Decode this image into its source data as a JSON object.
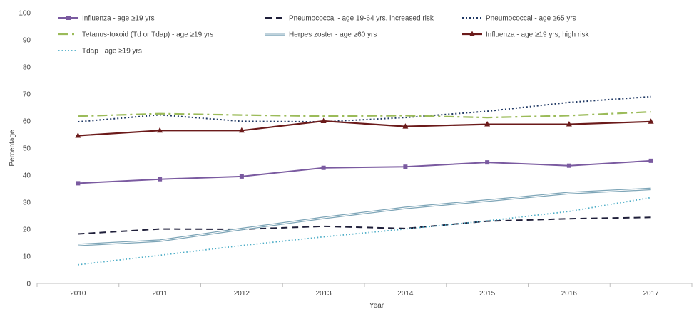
{
  "chart_data": {
    "type": "line",
    "title": "",
    "xlabel": "Year",
    "ylabel": "Percentage",
    "categories": [
      "2010",
      "2011",
      "2012",
      "2013",
      "2014",
      "2015",
      "2016",
      "2017"
    ],
    "ylim": [
      0,
      100
    ],
    "yticks": [
      0,
      10,
      20,
      30,
      40,
      50,
      60,
      70,
      80,
      90,
      100
    ],
    "grid": false,
    "legend_position": "top",
    "series": [
      {
        "name": "Influenza - age ≥19 yrs",
        "color": "#7a5aa0",
        "style": "solid-square-markers",
        "values": [
          37.0,
          38.5,
          39.5,
          42.7,
          43.1,
          44.7,
          43.5,
          45.3
        ]
      },
      {
        "name": "Pneumococcal - age 19-64 yrs, increased risk",
        "color": "#1f1f3a",
        "style": "dashed",
        "values": [
          18.3,
          20.1,
          20.0,
          21.1,
          20.3,
          23.0,
          23.9,
          24.4
        ]
      },
      {
        "name": "Pneumococcal - age ≥65 yrs",
        "color": "#1f3864",
        "style": "dotted",
        "values": [
          59.7,
          62.3,
          59.9,
          59.7,
          61.3,
          63.6,
          66.9,
          69.0
        ]
      },
      {
        "name": "Tetanus-toxoid (Td or Tdap) - age ≥19 yrs",
        "color": "#9bbb59",
        "style": "dash-dot",
        "values": [
          61.8,
          62.7,
          62.2,
          61.8,
          62.0,
          61.3,
          62.0,
          63.4
        ]
      },
      {
        "name": "Herpes zoster - age ≥60 yrs",
        "color": "#7fa6b8",
        "style": "double-line",
        "values": [
          14.2,
          15.8,
          20.1,
          24.2,
          27.9,
          30.6,
          33.4,
          34.9
        ]
      },
      {
        "name": "Influenza - age ≥19 yrs, high risk",
        "color": "#6b1a1a",
        "style": "solid-triangle-markers",
        "values": [
          54.6,
          56.5,
          56.5,
          60.0,
          58.0,
          58.8,
          58.8,
          59.8
        ]
      },
      {
        "name": "Tdap - age ≥19 yrs",
        "color": "#4bacc6",
        "style": "fine-dotted",
        "values": [
          6.9,
          10.4,
          14.0,
          17.2,
          20.1,
          23.1,
          26.6,
          31.7
        ]
      }
    ]
  }
}
